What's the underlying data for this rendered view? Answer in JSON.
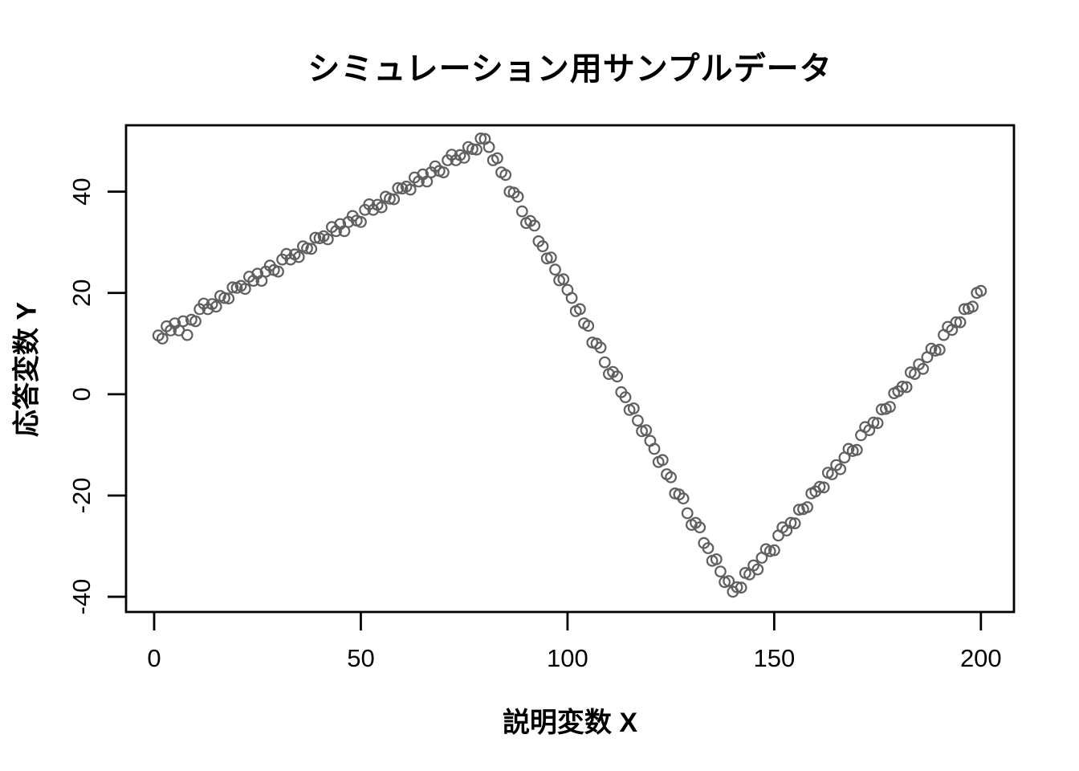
{
  "chart_data": {
    "type": "scatter",
    "title": "シミュレーション用サンプルデータ",
    "xlabel": "説明変数 X",
    "ylabel": "応答変数 Y",
    "marker": "open-circle",
    "point_color": "#5f5f5f",
    "axis_color": "#000000",
    "background_color": "#ffffff",
    "xticks": [
      0,
      50,
      100,
      150,
      200
    ],
    "yticks": [
      -40,
      -20,
      0,
      20,
      40
    ],
    "xlim": [
      -6.8,
      208.0
    ],
    "ylim": [
      -43.0,
      53.1
    ],
    "grid": false,
    "legend": null,
    "x_start": 1,
    "x_step": 1,
    "n_points": 200,
    "y": [
      11.6,
      11.0,
      13.4,
      12.6,
      14.0,
      12.6,
      14.4,
      11.7,
      14.7,
      14.4,
      16.8,
      17.9,
      16.8,
      17.8,
      17.3,
      19.4,
      19.0,
      18.9,
      21.1,
      21.0,
      21.4,
      20.8,
      23.2,
      22.4,
      23.8,
      22.4,
      24.2,
      25.4,
      24.5,
      24.2,
      26.6,
      27.7,
      26.6,
      27.6,
      27.1,
      29.2,
      28.8,
      28.7,
      30.9,
      30.8,
      31.2,
      30.6,
      33.0,
      32.2,
      33.6,
      32.2,
      34.0,
      35.2,
      34.3,
      34.0,
      36.4,
      37.5,
      36.4,
      37.4,
      36.9,
      39.0,
      38.6,
      38.5,
      40.7,
      40.6,
      41.0,
      40.4,
      42.8,
      42.0,
      43.4,
      42.0,
      43.8,
      45.0,
      44.1,
      43.8,
      46.2,
      47.3,
      46.2,
      47.2,
      46.7,
      48.8,
      48.4,
      48.3,
      50.5,
      50.4,
      48.8,
      46.2,
      46.6,
      43.8,
      43.3,
      40.0,
      39.8,
      39.0,
      36.1,
      33.8,
      34.2,
      33.3,
      30.2,
      29.2,
      26.8,
      27.0,
      24.6,
      22.5,
      22.7,
      20.6,
      19.0,
      16.4,
      16.8,
      14.0,
      13.5,
      10.2,
      10.0,
      9.2,
      6.3,
      4.0,
      4.4,
      3.5,
      0.4,
      -0.6,
      -3.1,
      -2.8,
      -5.2,
      -7.3,
      -7.1,
      -9.2,
      -10.8,
      -13.4,
      -13.0,
      -15.8,
      -16.4,
      -19.6,
      -19.8,
      -20.6,
      -23.5,
      -25.8,
      -25.4,
      -26.3,
      -29.4,
      -30.4,
      -32.9,
      -32.6,
      -35.0,
      -37.1,
      -36.9,
      -39.0,
      -38.1,
      -38.2,
      -35.3,
      -35.6,
      -33.8,
      -34.6,
      -32.3,
      -30.6,
      -31.0,
      -30.8,
      -27.9,
      -26.3,
      -26.9,
      -25.4,
      -25.5,
      -22.8,
      -22.7,
      -22.3,
      -19.6,
      -19.2,
      -18.3,
      -18.4,
      -15.5,
      -15.8,
      -14.0,
      -14.8,
      -12.5,
      -10.8,
      -11.2,
      -11.0,
      -8.1,
      -6.5,
      -7.1,
      -5.6,
      -5.7,
      -3.0,
      -2.9,
      -2.5,
      0.2,
      0.6,
      1.5,
      1.4,
      4.3,
      4.0,
      5.9,
      5.0,
      7.3,
      9.0,
      8.6,
      8.8,
      11.7,
      13.3,
      12.7,
      14.2,
      14.2,
      16.8,
      16.9,
      17.3,
      20.0,
      20.4
    ]
  }
}
